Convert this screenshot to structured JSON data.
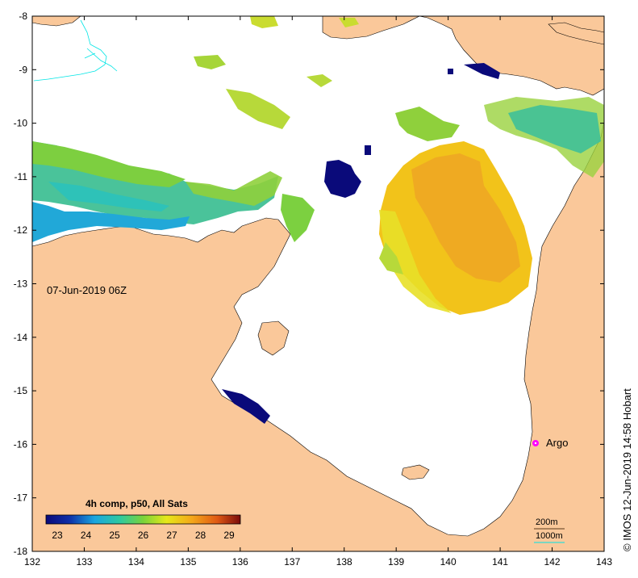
{
  "map": {
    "date_label": "07-Jun-2019 06Z",
    "credit": "© IMOS 12-Jun-2019 14:58 Hobart",
    "x_ticks": [
      "132",
      "133",
      "134",
      "135",
      "136",
      "137",
      "138",
      "139",
      "140",
      "141",
      "142",
      "143"
    ],
    "y_ticks": [
      "-8",
      "-9",
      "-10",
      "-11",
      "-12",
      "-13",
      "-14",
      "-15",
      "-16",
      "-17",
      "-18"
    ],
    "colorbar": {
      "title": "4h comp, p50, All Sats",
      "ticks": [
        "23",
        "24",
        "25",
        "26",
        "27",
        "28",
        "29"
      ]
    },
    "argo_label": "Argo",
    "scale": {
      "short": "200m",
      "long": "1000m"
    },
    "colors": {
      "land": "#fac89a",
      "sea_nodata": "#ffffff",
      "argo_marker": "#ff00ff",
      "contour_200m": "#5a3a1a",
      "contour_1000m": "#00e5e5"
    }
  }
}
